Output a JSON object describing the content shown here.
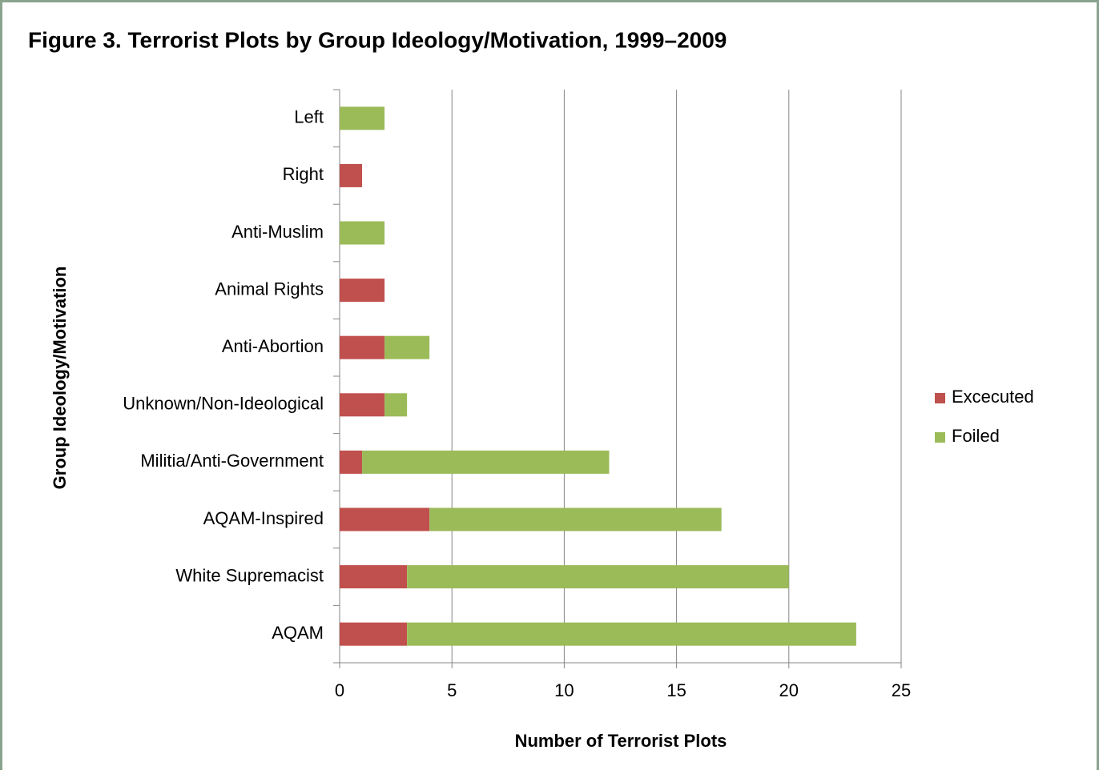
{
  "chart_data": {
    "type": "stacked-horizontal-bar",
    "title": "Figure 3. Terrorist Plots by Group Ideology/Motivation, 1999–2009",
    "y_label": "Group Ideology/Motivation",
    "x_label": "Number of Terrorist Plots",
    "categories": [
      "Left",
      "Right",
      "Anti-Muslim",
      "Animal Rights",
      "Anti-Abortion",
      "Unknown/Non-Ideological",
      "Militia/Anti-Government",
      "AQAM-Inspired",
      "White Supremacist",
      "AQAM"
    ],
    "series": [
      {
        "name": "Excecuted",
        "color": "#c0504d",
        "values": [
          0,
          1,
          0,
          2,
          2,
          2,
          1,
          4,
          3,
          3
        ]
      },
      {
        "name": "Foiled",
        "color": "#9bbb59",
        "values": [
          2,
          0,
          2,
          0,
          2,
          1,
          11,
          13,
          17,
          20
        ]
      }
    ],
    "xlim": [
      0,
      25
    ],
    "xticks": [
      0,
      5,
      10,
      15,
      20,
      25
    ],
    "grid": true,
    "legend": "right"
  }
}
